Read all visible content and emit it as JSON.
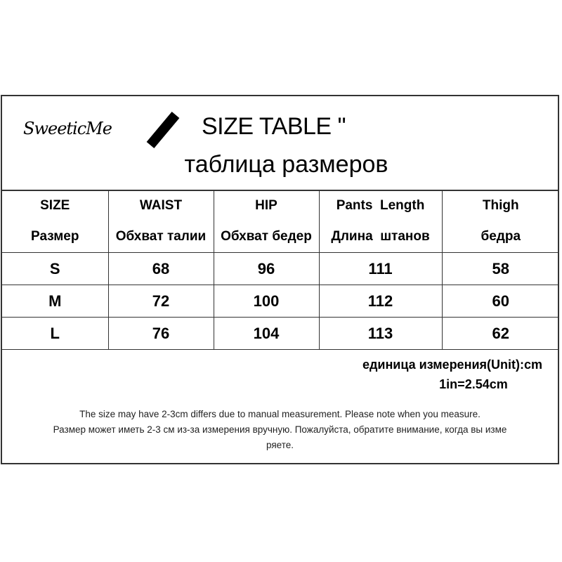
{
  "brand": "SweeticMe",
  "title": "SIZE TABLE \"",
  "subtitle": "таблица размеров",
  "table": {
    "headers_en": [
      "SIZE",
      "WAIST",
      "HIP",
      "Pants  Length",
      "Thigh"
    ],
    "headers_ru": [
      "Размер",
      "Обхват талии",
      "Обхват бедер",
      "Длина  штанов",
      "бедра"
    ],
    "rows": [
      [
        "S",
        "68",
        "96",
        "111",
        "58"
      ],
      [
        "M",
        "72",
        "100",
        "112",
        "60"
      ],
      [
        "L",
        "76",
        "104",
        "113",
        "62"
      ]
    ]
  },
  "unit_line": "единица измерения(Unit):cm",
  "conversion": "1in=2.54cm",
  "note_en": "The size may have 2-3cm differs due to manual measurement. Please note when you measure.",
  "note_ru_1": "Размер может иметь 2-3 см из-за измерения вручную. Пожалуйста, обратите внимание, когда вы изме",
  "note_ru_2": "ряете."
}
